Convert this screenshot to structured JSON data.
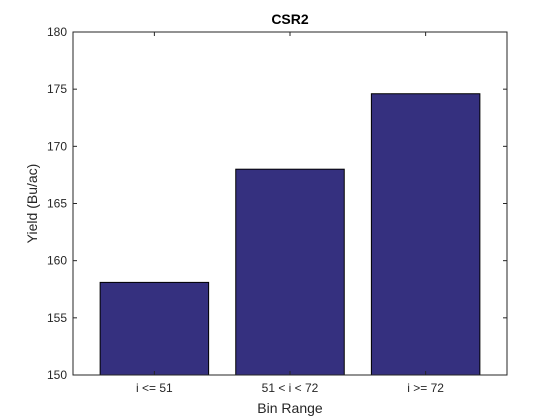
{
  "chart_data": {
    "type": "bar",
    "title": "CSR2",
    "xlabel": "Bin Range",
    "ylabel": "Yield (Bu/ac)",
    "categories": [
      "i <= 51",
      "51 < i < 72",
      "i >= 72"
    ],
    "values": [
      158.1,
      168.0,
      174.6
    ],
    "ylim": [
      150,
      180
    ],
    "yticks": [
      150,
      155,
      160,
      165,
      170,
      175,
      180
    ],
    "grid": false,
    "legend": "none",
    "bar_color": "#35307f",
    "bar_edge_color": "#000000"
  }
}
